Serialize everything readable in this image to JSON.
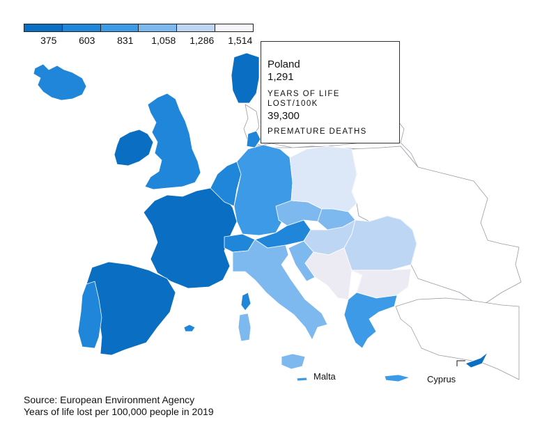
{
  "legend": {
    "colors": [
      "#0a6fc2",
      "#1f86da",
      "#3c9ae6",
      "#7db9ef",
      "#bcd6f4",
      "#f5f5fa"
    ],
    "labels": [
      "375",
      "603",
      "831",
      "1,058",
      "1,286",
      "1,514"
    ]
  },
  "tooltip": {
    "country": "Poland",
    "years_of_life_lost": "1,291",
    "years_caption": "YEARS OF LIFE LOST/100K",
    "premature_deaths": "39,300",
    "deaths_caption": "PREMATURE DEATHS"
  },
  "labels": {
    "malta": "Malta",
    "cyprus": "Cyprus"
  },
  "source": {
    "line1": "Source: European Environment Agency",
    "line2": "Years of life lost per 100,000 people in 2019"
  },
  "fills": {
    "darkest": "#0a6fc2",
    "dark": "#1f86da",
    "mid": "#3c9ae6",
    "light": "#7db9ef",
    "lighter": "#bcd6f4",
    "pale": "#dce8f8",
    "palest": "#ecebf3",
    "none": "#ffffff",
    "border": "#8a8a96"
  }
}
